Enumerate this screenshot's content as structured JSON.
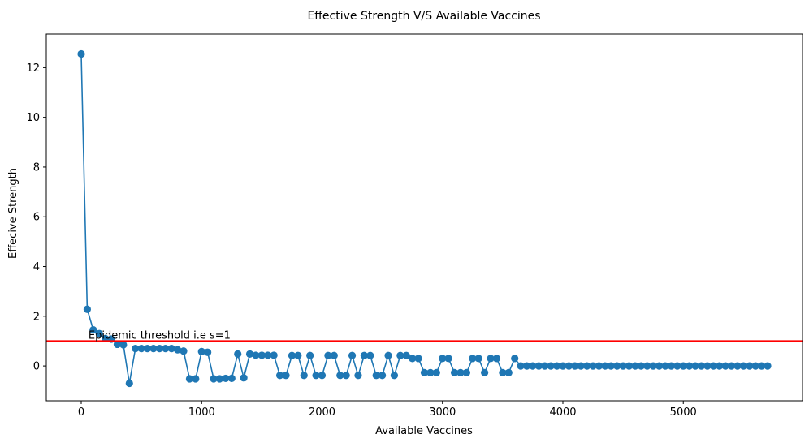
{
  "chart_data": {
    "type": "line",
    "title": "Effective Strength V/S Available Vaccines",
    "xlabel": "Available Vaccines",
    "ylabel": "Effecive Strength",
    "xlim": [
      -290,
      5990
    ],
    "ylim": [
      -1.4,
      13.35
    ],
    "xticks": [
      0,
      1000,
      2000,
      3000,
      4000,
      5000
    ],
    "yticks": [
      0,
      2,
      4,
      6,
      8,
      10,
      12
    ],
    "grid": false,
    "legend": "none",
    "colors": {
      "series": "#1f77b4",
      "threshold": "#ff0000"
    },
    "series": [
      {
        "marker": "circle",
        "x": [
          0,
          50,
          100,
          150,
          200,
          250,
          300,
          350,
          400,
          450,
          500,
          550,
          600,
          650,
          700,
          750,
          800,
          850,
          900,
          950,
          1000,
          1050,
          1100,
          1150,
          1200,
          1250,
          1300,
          1350,
          1400,
          1450,
          1500,
          1550,
          1600,
          1650,
          1700,
          1750,
          1800,
          1850,
          1900,
          1950,
          2000,
          2050,
          2100,
          2150,
          2200,
          2250,
          2300,
          2350,
          2400,
          2450,
          2500,
          2550,
          2600,
          2650,
          2700,
          2750,
          2800,
          2850,
          2900,
          2950,
          3000,
          3050,
          3100,
          3150,
          3200,
          3250,
          3300,
          3350,
          3400,
          3450,
          3500,
          3550,
          3600,
          3650,
          3700,
          3750,
          3800,
          3850,
          3900,
          3950,
          4000,
          4050,
          4100,
          4150,
          4200,
          4250,
          4300,
          4350,
          4400,
          4450,
          4500,
          4550,
          4600,
          4650,
          4700,
          4750,
          4800,
          4850,
          4900,
          4950,
          5000,
          5050,
          5100,
          5150,
          5200,
          5250,
          5300,
          5350,
          5400,
          5450,
          5500,
          5550,
          5600,
          5650,
          5700
        ],
        "y": [
          12.55,
          2.28,
          1.45,
          1.3,
          1.1,
          1.08,
          0.87,
          0.85,
          -0.7,
          0.7,
          0.7,
          0.7,
          0.7,
          0.7,
          0.7,
          0.7,
          0.65,
          0.6,
          -0.52,
          -0.52,
          0.58,
          0.55,
          -0.52,
          -0.52,
          -0.5,
          -0.5,
          0.48,
          -0.48,
          0.48,
          0.43,
          0.43,
          0.43,
          0.43,
          -0.38,
          -0.38,
          0.42,
          0.42,
          -0.38,
          0.42,
          -0.38,
          -0.38,
          0.42,
          0.42,
          -0.38,
          -0.38,
          0.42,
          -0.38,
          0.42,
          0.42,
          -0.38,
          -0.38,
          0.42,
          -0.38,
          0.42,
          0.42,
          0.3,
          0.3,
          -0.27,
          -0.27,
          -0.27,
          0.3,
          0.3,
          -0.27,
          -0.27,
          -0.27,
          0.3,
          0.3,
          -0.27,
          0.3,
          0.3,
          -0.27,
          -0.27,
          0.3,
          0,
          0,
          0,
          0,
          0,
          0,
          0,
          0,
          0,
          0,
          0,
          0,
          0,
          0,
          0,
          0,
          0,
          0,
          0,
          0,
          0,
          0,
          0,
          0,
          0,
          0,
          0,
          0,
          0,
          0,
          0,
          0,
          0,
          0,
          0,
          0,
          0,
          0,
          0,
          0,
          0,
          0
        ]
      }
    ],
    "reference_line": {
      "y": 1,
      "label": "Epidemic threshold i.e s=1",
      "label_x": 60,
      "label_y": 1.1
    }
  }
}
